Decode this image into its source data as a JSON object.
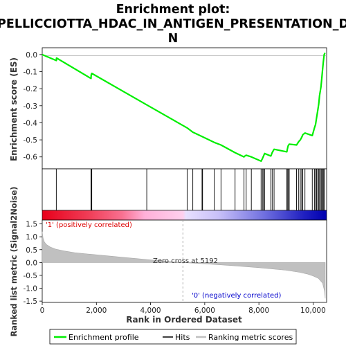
{
  "chart_data": {
    "type": "line",
    "title_line1": "Enrichment plot:",
    "title_line2": "PELLICCIOTTA_HDAC_IN_ANTIGEN_PRESENTATION_D",
    "title_line3": "N",
    "top_panel": {
      "ylabel": "Enrichment score (ES)",
      "ylim": [
        -0.67,
        0.04
      ],
      "yticks": [
        "0.0",
        "-0.1",
        "-0.2",
        "-0.3",
        "-0.4",
        "-0.5",
        "-0.6"
      ],
      "ytick_values": [
        0.0,
        -0.1,
        -0.2,
        -0.3,
        -0.4,
        -0.5,
        -0.6
      ],
      "series_name": "Enrichment profile",
      "color": "#00ee00",
      "x": [
        0,
        520,
        530,
        1800,
        1810,
        1830,
        3860,
        5350,
        5560,
        5900,
        6350,
        6600,
        7120,
        7450,
        7480,
        7530,
        7720,
        8080,
        8130,
        8170,
        8210,
        8440,
        8490,
        8560,
        9030,
        9050,
        9080,
        9120,
        9390,
        9470,
        9530,
        9580,
        9620,
        9700,
        9970,
        10050,
        10090,
        10130,
        10170,
        10210,
        10240,
        10290,
        10320,
        10350,
        10380,
        10410,
        10440
      ],
      "y": [
        0.0,
        -0.035,
        -0.02,
        -0.14,
        -0.12,
        -0.11,
        -0.295,
        -0.43,
        -0.455,
        -0.48,
        -0.515,
        -0.53,
        -0.575,
        -0.6,
        -0.595,
        -0.59,
        -0.6,
        -0.625,
        -0.61,
        -0.595,
        -0.58,
        -0.595,
        -0.575,
        -0.555,
        -0.57,
        -0.555,
        -0.535,
        -0.525,
        -0.53,
        -0.51,
        -0.5,
        -0.485,
        -0.47,
        -0.46,
        -0.475,
        -0.43,
        -0.41,
        -0.37,
        -0.33,
        -0.29,
        -0.24,
        -0.19,
        -0.14,
        -0.09,
        -0.04,
        0.0,
        0.01
      ]
    },
    "hits": [
      520,
      1800,
      1810,
      1830,
      3860,
      5350,
      5560,
      5900,
      5920,
      6350,
      6600,
      7120,
      7450,
      7530,
      7720,
      8080,
      8130,
      8170,
      8210,
      8440,
      8490,
      8560,
      9030,
      9050,
      9080,
      9120,
      9390,
      9470,
      9530,
      9580,
      9620,
      9700,
      9970,
      10050,
      10090,
      10130,
      10170,
      10210,
      10240,
      10290,
      10320,
      10350,
      10380,
      10410
    ],
    "bottom_panel": {
      "ylabel": "Ranked list metric (Signal2Noise)",
      "ylim": [
        -1.55,
        1.65
      ],
      "yticks": [
        "1.5",
        "1.0",
        "0.5",
        "0.0",
        "-0.5",
        "-1.0",
        "-1.5"
      ],
      "ytick_values": [
        1.5,
        1.0,
        0.5,
        0.0,
        -0.5,
        -1.0,
        -1.5
      ],
      "series_name": "Ranking metric scores",
      "color": "#c0c0c0",
      "x": [
        0,
        30,
        80,
        150,
        300,
        500,
        800,
        1200,
        2000,
        3000,
        4000,
        5192,
        6000,
        7000,
        8000,
        9000,
        9500,
        9800,
        10000,
        10200,
        10350,
        10420,
        10450
      ],
      "y": [
        1.2,
        0.95,
        0.8,
        0.7,
        0.6,
        0.52,
        0.45,
        0.38,
        0.3,
        0.2,
        0.1,
        0.0,
        -0.05,
        -0.12,
        -0.2,
        -0.3,
        -0.38,
        -0.45,
        -0.52,
        -0.62,
        -0.8,
        -1.1,
        -1.4
      ]
    },
    "xlabel": "Rank in Ordered Dataset",
    "xlim": [
      0,
      10500
    ],
    "xticks": [
      "0",
      "2,000",
      "4,000",
      "6,000",
      "8,000",
      "10,000"
    ],
    "xtick_values": [
      0,
      2000,
      4000,
      6000,
      8000,
      10000
    ],
    "zero_cross_label": "Zero cross at 5192",
    "zero_cross": 5192,
    "pos_label": "'1' (positively correlated)",
    "neg_label": "'0' (negatively correlated)",
    "pos_color": "#dd0000",
    "neg_color": "#0000cc",
    "legend": {
      "placement": "bottom",
      "items": [
        "Enrichment profile",
        "Hits",
        "Ranking metric scores"
      ]
    }
  }
}
